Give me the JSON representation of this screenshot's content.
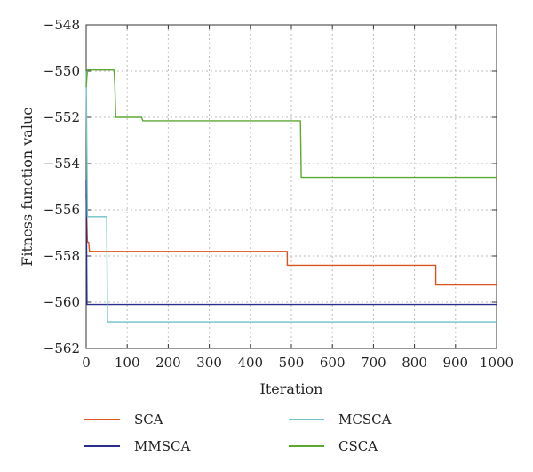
{
  "chart_data": {
    "type": "line",
    "title": "",
    "xlabel": "Iteration",
    "ylabel": "Fitness function value",
    "xlim": [
      0,
      1000
    ],
    "ylim": [
      -562,
      -548
    ],
    "xticks": [
      0,
      100,
      200,
      300,
      400,
      500,
      600,
      700,
      800,
      900,
      1000
    ],
    "yticks": [
      -548,
      -550,
      -552,
      -554,
      -556,
      -558,
      -560,
      -562
    ],
    "xtick_labels": [
      "0",
      "100",
      "200",
      "300",
      "400",
      "500",
      "600",
      "700",
      "800",
      "900",
      "1000"
    ],
    "ytick_labels": [
      "−548",
      "−550",
      "−552",
      "−554",
      "−556",
      "−558",
      "−560",
      "−562"
    ],
    "grid": true,
    "legend_position": "bottom",
    "series": [
      {
        "name": "SCA",
        "color": "#d9541e",
        "points": [
          [
            0,
            -555.3
          ],
          [
            3,
            -557.4
          ],
          [
            6,
            -557.4
          ],
          [
            8,
            -557.8
          ],
          [
            490,
            -557.8
          ],
          [
            490,
            -558.4
          ],
          [
            852,
            -558.4
          ],
          [
            852,
            -559.25
          ],
          [
            1000,
            -559.25
          ]
        ]
      },
      {
        "name": "MMSCA",
        "color": "#2b2e8c",
        "points": [
          [
            0,
            -554.7
          ],
          [
            2,
            -560.1
          ],
          [
            1000,
            -560.1
          ]
        ]
      },
      {
        "name": "MCSCA",
        "color": "#6fc1c6",
        "points": [
          [
            0,
            -550.0
          ],
          [
            3,
            -556.3
          ],
          [
            50,
            -556.3
          ],
          [
            52,
            -560.85
          ],
          [
            1000,
            -560.85
          ]
        ]
      },
      {
        "name": "CSCA",
        "color": "#5da832",
        "points": [
          [
            0,
            -550.7
          ],
          [
            3,
            -549.95
          ],
          [
            68,
            -549.95
          ],
          [
            70,
            -550.6
          ],
          [
            72,
            -552.0
          ],
          [
            135,
            -552.0
          ],
          [
            138,
            -552.15
          ],
          [
            522,
            -552.15
          ],
          [
            524,
            -554.6
          ],
          [
            1000,
            -554.6
          ]
        ]
      }
    ]
  }
}
